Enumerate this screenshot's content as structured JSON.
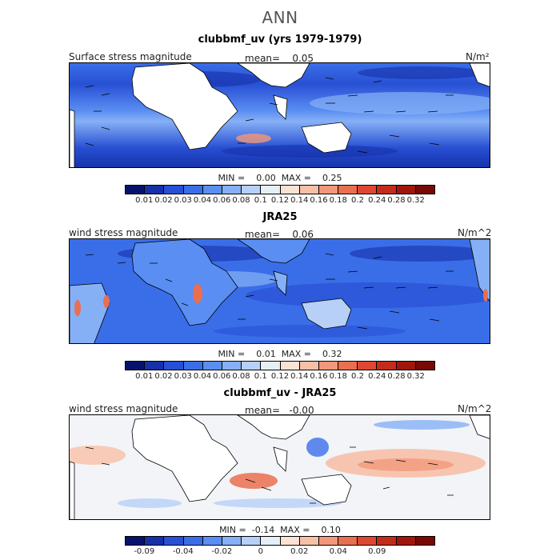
{
  "header": {
    "title": "ANN"
  },
  "panels": [
    {
      "title": "clubbmf_uv (yrs 1979-1979)",
      "left_label": "Surface stress magnitude",
      "mean_text": "mean=    0.05",
      "units": "N/m²",
      "minmax": "MIN =    0.00  MAX =    0.25",
      "colorbar": {
        "colors": [
          "#08126e",
          "#1530a8",
          "#2850d4",
          "#3a6ee8",
          "#5a8ef2",
          "#86b0f6",
          "#b6d0f8",
          "#e6eef8",
          "#fbe2d4",
          "#f7c0a6",
          "#f2987a",
          "#ea6e50",
          "#de4830",
          "#c42c1a",
          "#a0160c",
          "#7a0804"
        ],
        "labels": [
          "0.01",
          "0.02",
          "0.03",
          "0.04",
          "0.06",
          "0.08",
          "0.1",
          "0.12",
          "0.14",
          "0.16",
          "0.18",
          "0.2",
          "0.24",
          "0.28",
          "0.32"
        ]
      }
    },
    {
      "title": "JRA25",
      "left_label": "wind stress magnitude",
      "mean_text": "mean=    0.06",
      "units": "N/m^2",
      "minmax": "MIN =    0.01  MAX =    0.32",
      "colorbar": {
        "colors": [
          "#08126e",
          "#1530a8",
          "#2850d4",
          "#3a6ee8",
          "#5a8ef2",
          "#86b0f6",
          "#b6d0f8",
          "#e6eef8",
          "#fbe2d4",
          "#f7c0a6",
          "#f2987a",
          "#ea6e50",
          "#de4830",
          "#c42c1a",
          "#a0160c",
          "#7a0804"
        ],
        "labels": [
          "0.01",
          "0.02",
          "0.03",
          "0.04",
          "0.06",
          "0.08",
          "0.1",
          "0.12",
          "0.14",
          "0.16",
          "0.18",
          "0.2",
          "0.24",
          "0.28",
          "0.32"
        ]
      }
    },
    {
      "title": "clubbmf_uv - JRA25",
      "left_label": "wind stress magnitude",
      "mean_text": "mean=   -0.00",
      "units": "N/m^2",
      "minmax": "MIN =  -0.14  MAX =    0.10",
      "colorbar": {
        "colors": [
          "#08126e",
          "#1530a8",
          "#2850d4",
          "#3a6ee8",
          "#5a8ef2",
          "#86b0f6",
          "#b6d0f8",
          "#e6eef8",
          "#fbe2d4",
          "#f7c0a6",
          "#f2987a",
          "#ea6e50",
          "#de4830",
          "#c42c1a",
          "#a0160c",
          "#7a0804"
        ],
        "labels": [
          "-0.09",
          "-0.04",
          "-0.02",
          "0",
          "0.02",
          "0.04",
          "0.09"
        ],
        "label_slots": [
          1,
          3,
          5,
          7,
          9,
          11,
          13
        ]
      }
    }
  ],
  "colors": {
    "land": "#ffffff",
    "outline": "#000000"
  }
}
